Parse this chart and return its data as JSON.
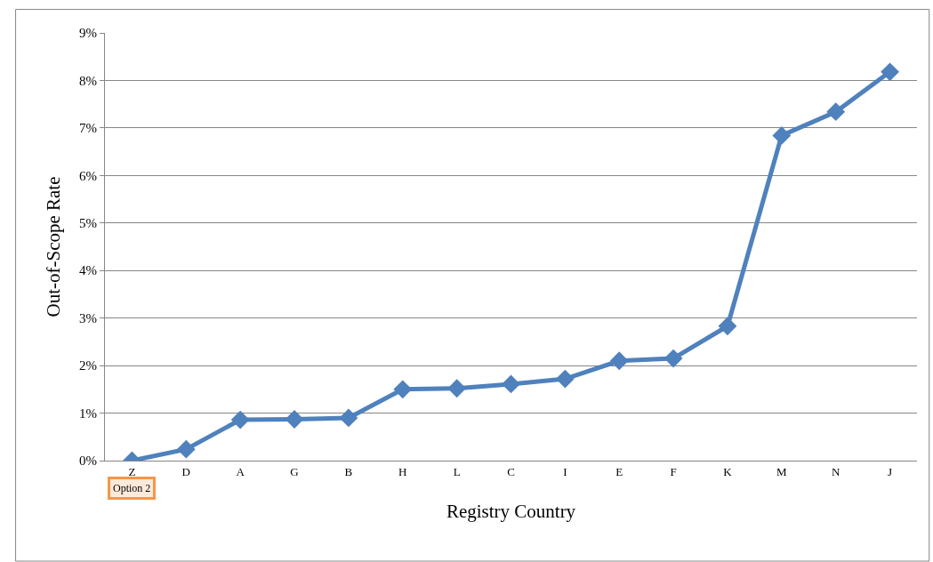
{
  "chart_data": {
    "type": "line",
    "xlabel": "Registry Country",
    "ylabel": "Out-of-Scope Rate",
    "categories": [
      "Z",
      "D",
      "A",
      "G",
      "B",
      "H",
      "L",
      "C",
      "I",
      "E",
      "F",
      "K",
      "M",
      "N",
      "J"
    ],
    "series": [
      {
        "color": "#4f81bd",
        "values": [
          0,
          0.24,
          0.86,
          0.87,
          0.9,
          1.5,
          1.52,
          1.61,
          1.72,
          2.1,
          2.15,
          2.83,
          6.84,
          7.34,
          8.18
        ]
      }
    ],
    "ylim": [
      0,
      9
    ],
    "yticks": [
      {
        "value": 0,
        "label": "0%"
      },
      {
        "value": 1,
        "label": "1%"
      },
      {
        "value": 2,
        "label": "2%"
      },
      {
        "value": 3,
        "label": "3%"
      },
      {
        "value": 4,
        "label": "4%"
      },
      {
        "value": 5,
        "label": "5%"
      },
      {
        "value": 6,
        "label": "6%"
      },
      {
        "value": 7,
        "label": "7%"
      },
      {
        "value": 8,
        "label": "8%"
      },
      {
        "value": 9,
        "label": "9%"
      }
    ],
    "annotations": [
      "Option 2"
    ],
    "grid": "y",
    "marker": "diamond",
    "line_style": "solid"
  }
}
